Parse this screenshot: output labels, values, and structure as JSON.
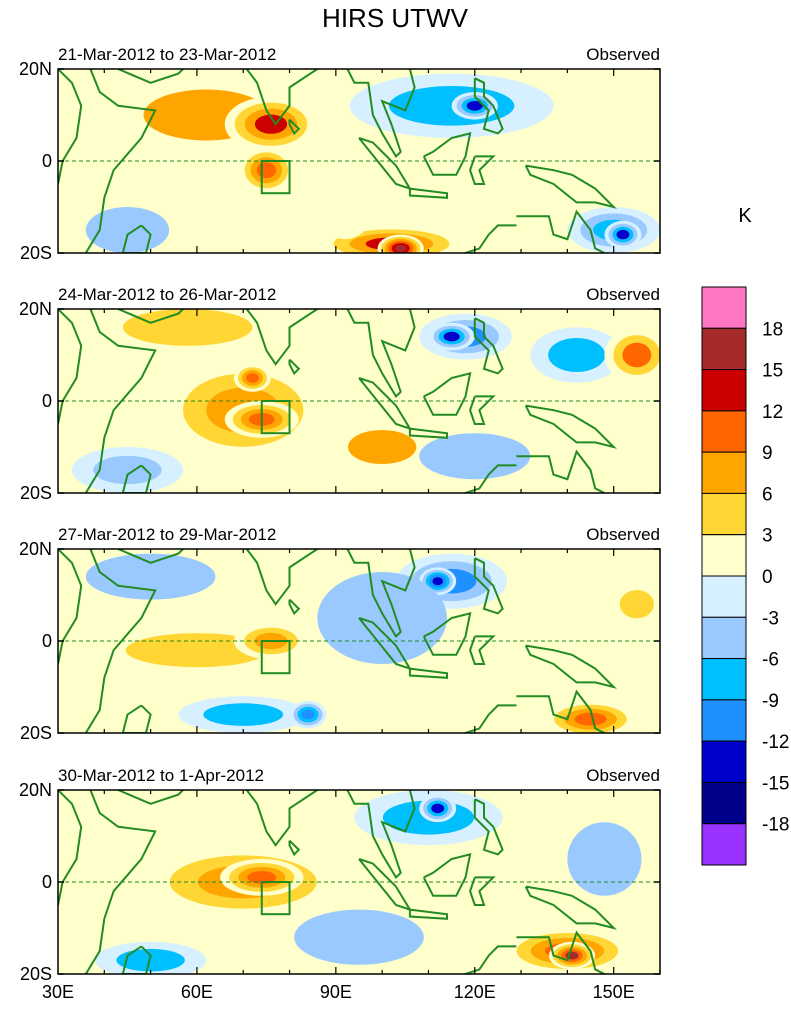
{
  "figure": {
    "title": "HIRS UTWV",
    "colorbar_unit": "K"
  },
  "chart_data": {
    "type": "heatmap",
    "title": "HIRS UTWV",
    "units": "K",
    "x_ticks": [
      "30E",
      "60E",
      "90E",
      "120E",
      "150E"
    ],
    "x_tick_values": [
      30,
      60,
      90,
      120,
      150
    ],
    "y_ticks": [
      "20N",
      "0",
      "20S"
    ],
    "y_tick_values": [
      20,
      0,
      -20
    ],
    "xlim": [
      30,
      160
    ],
    "ylim": [
      -20,
      20
    ],
    "levels": [
      "18",
      "15",
      "12",
      "9",
      "6",
      "3",
      "0",
      "-3",
      "-6",
      "-9",
      "-12",
      "-15",
      "-18"
    ],
    "colors": [
      "#ff77c3",
      "#a52a2a",
      "#cc0000",
      "#ff6600",
      "#ffa500",
      "#ffd633",
      "#ffffcc",
      "#d6f0ff",
      "#99c9ff",
      "#00bfff",
      "#1e90ff",
      "#0000cd",
      "#00008b",
      "#9932ff"
    ],
    "box_region": {
      "lon": [
        74,
        80
      ],
      "lat": [
        -7,
        0
      ]
    },
    "panels": [
      {
        "period": "21-Mar-2012 to 23-Mar-2012",
        "label": "Observed",
        "blobs": [
          {
            "lon": 62,
            "lat": 10,
            "rx": 22,
            "ry": 9,
            "v": 7
          },
          {
            "lon": 76,
            "lat": 8,
            "rx": 10,
            "ry": 6,
            "v": 13
          },
          {
            "lon": 75,
            "lat": -2,
            "rx": 6,
            "ry": 5,
            "v": 11
          },
          {
            "lon": 102,
            "lat": -18,
            "rx": 16,
            "ry": 4,
            "v": 13
          },
          {
            "lon": 104,
            "lat": -19,
            "rx": 5,
            "ry": 3,
            "v": 17
          },
          {
            "lon": 115,
            "lat": 12,
            "rx": 22,
            "ry": 7,
            "v": -6
          },
          {
            "lon": 120,
            "lat": 12,
            "rx": 5,
            "ry": 3,
            "v": -12
          },
          {
            "lon": 150,
            "lat": -15,
            "rx": 10,
            "ry": 5,
            "v": -8
          },
          {
            "lon": 152,
            "lat": -16,
            "rx": 4,
            "ry": 3,
            "v": -12
          },
          {
            "lon": 45,
            "lat": -15,
            "rx": 9,
            "ry": 5,
            "v": -4
          },
          {
            "lon": 92,
            "lat": -5,
            "rx": 8,
            "ry": 12,
            "v": 1
          }
        ]
      },
      {
        "period": "24-Mar-2012 to 26-Mar-2012",
        "label": "Observed",
        "blobs": [
          {
            "lon": 70,
            "lat": -2,
            "rx": 18,
            "ry": 11,
            "v": 8
          },
          {
            "lon": 74,
            "lat": -4,
            "rx": 8,
            "ry": 4,
            "v": 12
          },
          {
            "lon": 72,
            "lat": 5,
            "rx": 4,
            "ry": 3,
            "v": 12
          },
          {
            "lon": 100,
            "lat": -10,
            "rx": 12,
            "ry": 6,
            "v": 7
          },
          {
            "lon": 58,
            "lat": 16,
            "rx": 14,
            "ry": 4,
            "v": 4
          },
          {
            "lon": 118,
            "lat": 14,
            "rx": 10,
            "ry": 5,
            "v": -9
          },
          {
            "lon": 115,
            "lat": 14,
            "rx": 5,
            "ry": 3,
            "v": -13
          },
          {
            "lon": 142,
            "lat": 10,
            "rx": 10,
            "ry": 6,
            "v": -6
          },
          {
            "lon": 155,
            "lat": 10,
            "rx": 7,
            "ry": 6,
            "v": 10
          },
          {
            "lon": 45,
            "lat": -15,
            "rx": 12,
            "ry": 5,
            "v": -5
          },
          {
            "lon": 120,
            "lat": -12,
            "rx": 12,
            "ry": 5,
            "v": -3
          }
        ]
      },
      {
        "period": "27-Mar-2012 to 29-Mar-2012",
        "label": "Observed",
        "blobs": [
          {
            "lon": 60,
            "lat": -2,
            "rx": 25,
            "ry": 6,
            "v": 6
          },
          {
            "lon": 76,
            "lat": 0,
            "rx": 8,
            "ry": 4,
            "v": 9
          },
          {
            "lon": 115,
            "lat": 13,
            "rx": 12,
            "ry": 6,
            "v": -9
          },
          {
            "lon": 112,
            "lat": 13,
            "rx": 4,
            "ry": 3,
            "v": -14
          },
          {
            "lon": 145,
            "lat": -17,
            "rx": 10,
            "ry": 4,
            "v": 12
          },
          {
            "lon": 70,
            "lat": -16,
            "rx": 14,
            "ry": 4,
            "v": -6
          },
          {
            "lon": 84,
            "lat": -16,
            "rx": 4,
            "ry": 3,
            "v": -11
          },
          {
            "lon": 100,
            "lat": 5,
            "rx": 14,
            "ry": 10,
            "v": -3
          },
          {
            "lon": 130,
            "lat": -2,
            "rx": 12,
            "ry": 3,
            "v": 3
          },
          {
            "lon": 155,
            "lat": 8,
            "rx": 6,
            "ry": 5,
            "v": 6
          },
          {
            "lon": 50,
            "lat": 14,
            "rx": 14,
            "ry": 5,
            "v": -4
          }
        ]
      },
      {
        "period": "30-Mar-2012 to 1-Apr-2012",
        "label": "Observed",
        "blobs": [
          {
            "lon": 70,
            "lat": 0,
            "rx": 22,
            "ry": 8,
            "v": 8
          },
          {
            "lon": 74,
            "lat": 1,
            "rx": 9,
            "ry": 4,
            "v": 12
          },
          {
            "lon": 140,
            "lat": -15,
            "rx": 14,
            "ry": 5,
            "v": 11
          },
          {
            "lon": 141,
            "lat": -16,
            "rx": 5,
            "ry": 3,
            "v": 16
          },
          {
            "lon": 110,
            "lat": 14,
            "rx": 16,
            "ry": 6,
            "v": -7
          },
          {
            "lon": 112,
            "lat": 16,
            "rx": 4,
            "ry": 3,
            "v": -13
          },
          {
            "lon": 50,
            "lat": -17,
            "rx": 12,
            "ry": 4,
            "v": -6
          },
          {
            "lon": 95,
            "lat": -12,
            "rx": 14,
            "ry": 6,
            "v": -4
          },
          {
            "lon": 130,
            "lat": 3,
            "rx": 18,
            "ry": 4,
            "v": 3
          },
          {
            "lon": 148,
            "lat": 5,
            "rx": 8,
            "ry": 8,
            "v": -3
          }
        ]
      }
    ]
  }
}
